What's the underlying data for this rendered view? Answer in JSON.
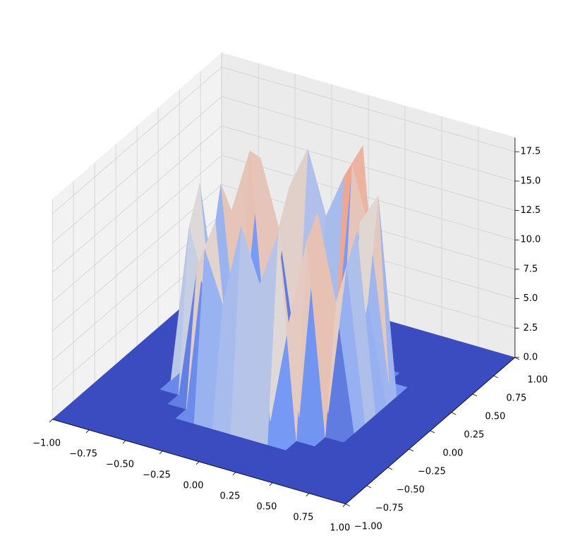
{
  "chart_data": {
    "type": "surface3d",
    "colormap": [
      "#3b4cc0",
      "#7b9ff9",
      "#dddddd",
      "#f49a7b",
      "#b40426"
    ],
    "x": [
      -1,
      -0.875,
      -0.75,
      -0.625,
      -0.5,
      -0.375,
      -0.25,
      -0.125,
      0,
      0.125,
      0.25,
      0.375,
      0.5,
      0.625,
      0.75,
      0.875,
      1
    ],
    "y": [
      -1,
      -0.875,
      -0.75,
      -0.625,
      -0.5,
      -0.375,
      -0.25,
      -0.125,
      0,
      0.125,
      0.25,
      0.375,
      0.5,
      0.625,
      0.75,
      0.875,
      1
    ],
    "z": [
      [
        0,
        0,
        0,
        0,
        0,
        0,
        0,
        0,
        0,
        0,
        0,
        0,
        0,
        0,
        0,
        0,
        0
      ],
      [
        0,
        0,
        0,
        0,
        0,
        0,
        0,
        0,
        0,
        0,
        0,
        0,
        0,
        0,
        0,
        0,
        0
      ],
      [
        0,
        0,
        0,
        0,
        0,
        0,
        0,
        0,
        0,
        0,
        0,
        0,
        0,
        0,
        0,
        0,
        0
      ],
      [
        0,
        0,
        0,
        0,
        0,
        0,
        0,
        0,
        0,
        0,
        0,
        0,
        0,
        0,
        0,
        0,
        0
      ],
      [
        0,
        0,
        0,
        0,
        0,
        0,
        14.2,
        9.8,
        16.9,
        12.4,
        17.1,
        0,
        0,
        0,
        0,
        0,
        0
      ],
      [
        0,
        0,
        0,
        0,
        0,
        11.3,
        15.6,
        0,
        0,
        0,
        8.7,
        16.2,
        0,
        0,
        0,
        0,
        0
      ],
      [
        0,
        0,
        0,
        0,
        13.5,
        7.9,
        0,
        0,
        0,
        0,
        0,
        17.8,
        10.6,
        0,
        0,
        0,
        0
      ],
      [
        0,
        0,
        0,
        0,
        16.4,
        0,
        0,
        0,
        0,
        0,
        0,
        0,
        12.9,
        0,
        0,
        0,
        0
      ],
      [
        0,
        0,
        0,
        0,
        9.2,
        0,
        0,
        0,
        0,
        0,
        0,
        0,
        15.1,
        0,
        0,
        0,
        0
      ],
      [
        0,
        0,
        0,
        0,
        14.8,
        0,
        0,
        0,
        0,
        0,
        0,
        0,
        8.3,
        0,
        0,
        0,
        0
      ],
      [
        0,
        0,
        0,
        0,
        11.7,
        17.3,
        0,
        0,
        0,
        0,
        0,
        13.9,
        16.6,
        0,
        0,
        0,
        0
      ],
      [
        0,
        0,
        0,
        0,
        0,
        15.9,
        10.4,
        0,
        0,
        0,
        17.6,
        12.2,
        0,
        0,
        0,
        0,
        0
      ],
      [
        0,
        0,
        0,
        0,
        0,
        0,
        13.1,
        16.8,
        11.5,
        15.4,
        18.4,
        0,
        0,
        0,
        0,
        0,
        0
      ],
      [
        0,
        0,
        0,
        0,
        0,
        0,
        0,
        0,
        0,
        0,
        0,
        0,
        0,
        0,
        0,
        0,
        0
      ],
      [
        0,
        0,
        0,
        0,
        0,
        0,
        0,
        0,
        0,
        0,
        0,
        0,
        0,
        0,
        0,
        0,
        0
      ],
      [
        0,
        0,
        0,
        0,
        0,
        0,
        0,
        0,
        0,
        0,
        0,
        0,
        0,
        0,
        0,
        0,
        0
      ],
      [
        0,
        0,
        0,
        0,
        0,
        0,
        0,
        0,
        0,
        0,
        0,
        0,
        0,
        0,
        0,
        0,
        0
      ]
    ],
    "xlim": [
      -1,
      1
    ],
    "ylim": [
      -1,
      1
    ],
    "zlim": [
      0,
      18.7
    ],
    "xticks": [
      {
        "value": -1,
        "label": "−1.00"
      },
      {
        "value": -0.75,
        "label": "−0.75"
      },
      {
        "value": -0.5,
        "label": "−0.50"
      },
      {
        "value": -0.25,
        "label": "−0.25"
      },
      {
        "value": 0,
        "label": "0.00"
      },
      0.25,
      {
        "value": 0.5,
        "label": "0.50"
      },
      0.75,
      {
        "value": 1,
        "label": "1.00"
      }
    ],
    "yticks": [
      {
        "value": -1,
        "label": "−1.00"
      },
      {
        "value": -0.75,
        "label": "−0.75"
      },
      {
        "value": -0.5,
        "label": "−0.50"
      },
      {
        "value": -0.25,
        "label": "−0.25"
      },
      {
        "value": 0,
        "label": "0.00"
      },
      0.25,
      {
        "value": 0.5,
        "label": "0.50"
      },
      0.75,
      {
        "value": 1,
        "label": "1.00"
      }
    ],
    "zticks": [
      {
        "value": 0,
        "label": "0.0"
      },
      2.5,
      {
        "value": 5,
        "label": "5.0"
      },
      7.5,
      {
        "value": 10,
        "label": "10.0"
      },
      12.5,
      {
        "value": 15,
        "label": "15.0"
      },
      17.5
    ],
    "grid": true
  }
}
